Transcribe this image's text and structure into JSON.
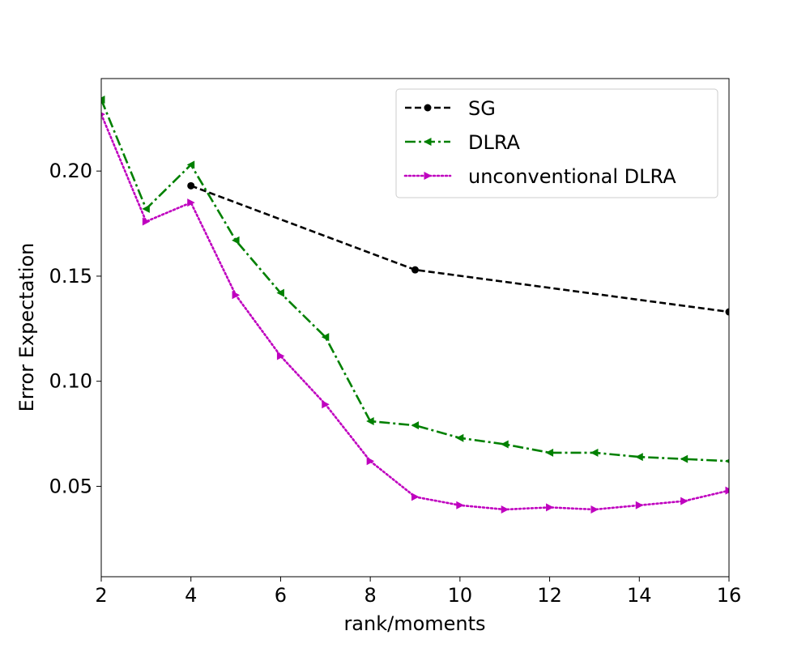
{
  "chart_data": {
    "type": "line",
    "title": "",
    "xlabel": "rank/moments",
    "ylabel": "Error Expectation",
    "xlim": [
      2,
      16
    ],
    "ylim": [
      0.007,
      0.244
    ],
    "xticks": [
      2,
      4,
      6,
      8,
      10,
      12,
      14,
      16
    ],
    "xtick_labels": [
      "2",
      "4",
      "6",
      "8",
      "10",
      "12",
      "14",
      "16"
    ],
    "yticks": [
      0.05,
      0.1,
      0.15,
      0.2
    ],
    "ytick_labels": [
      "0.05",
      "0.10",
      "0.15",
      "0.20"
    ],
    "legend_position": "top-right",
    "series": [
      {
        "name": "SG",
        "color": "#000000",
        "linestyle": "dashed",
        "marker": "circle",
        "x": [
          4,
          9,
          16
        ],
        "y": [
          0.193,
          0.153,
          0.133
        ]
      },
      {
        "name": "DLRA",
        "color": "#008000",
        "linestyle": "dashdot",
        "marker": "triangle-left",
        "x": [
          2,
          3,
          4,
          5,
          6,
          7,
          8,
          9,
          10,
          11,
          12,
          13,
          14,
          15,
          16
        ],
        "y": [
          0.234,
          0.182,
          0.203,
          0.167,
          0.142,
          0.121,
          0.081,
          0.079,
          0.073,
          0.07,
          0.066,
          0.066,
          0.064,
          0.063,
          0.062
        ]
      },
      {
        "name": "unconventional DLRA",
        "color": "#bf00bf",
        "linestyle": "dotted",
        "marker": "triangle-right",
        "x": [
          2,
          3,
          4,
          5,
          6,
          7,
          8,
          9,
          10,
          11,
          12,
          13,
          14,
          15,
          16
        ],
        "y": [
          0.227,
          0.176,
          0.185,
          0.141,
          0.112,
          0.089,
          0.062,
          0.045,
          0.041,
          0.039,
          0.04,
          0.039,
          0.041,
          0.043,
          0.048
        ]
      }
    ]
  }
}
